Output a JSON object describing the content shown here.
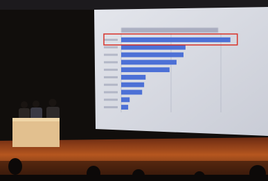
{
  "chart_data": {
    "type": "bar",
    "orientation": "horizontal",
    "categories": [
      null,
      null,
      null,
      null,
      null,
      null,
      null,
      null,
      null,
      null
    ],
    "values": [
      2.19,
      1.29,
      1.25,
      1.11,
      0.97,
      0.49,
      0.46,
      0.42,
      0.17,
      0.14
    ],
    "color": "#4c70d6",
    "xlim": [
      0,
      2.5
    ],
    "xticks": [
      0,
      1,
      2
    ],
    "grid": true,
    "highlight_color": "#d8332a"
  }
}
